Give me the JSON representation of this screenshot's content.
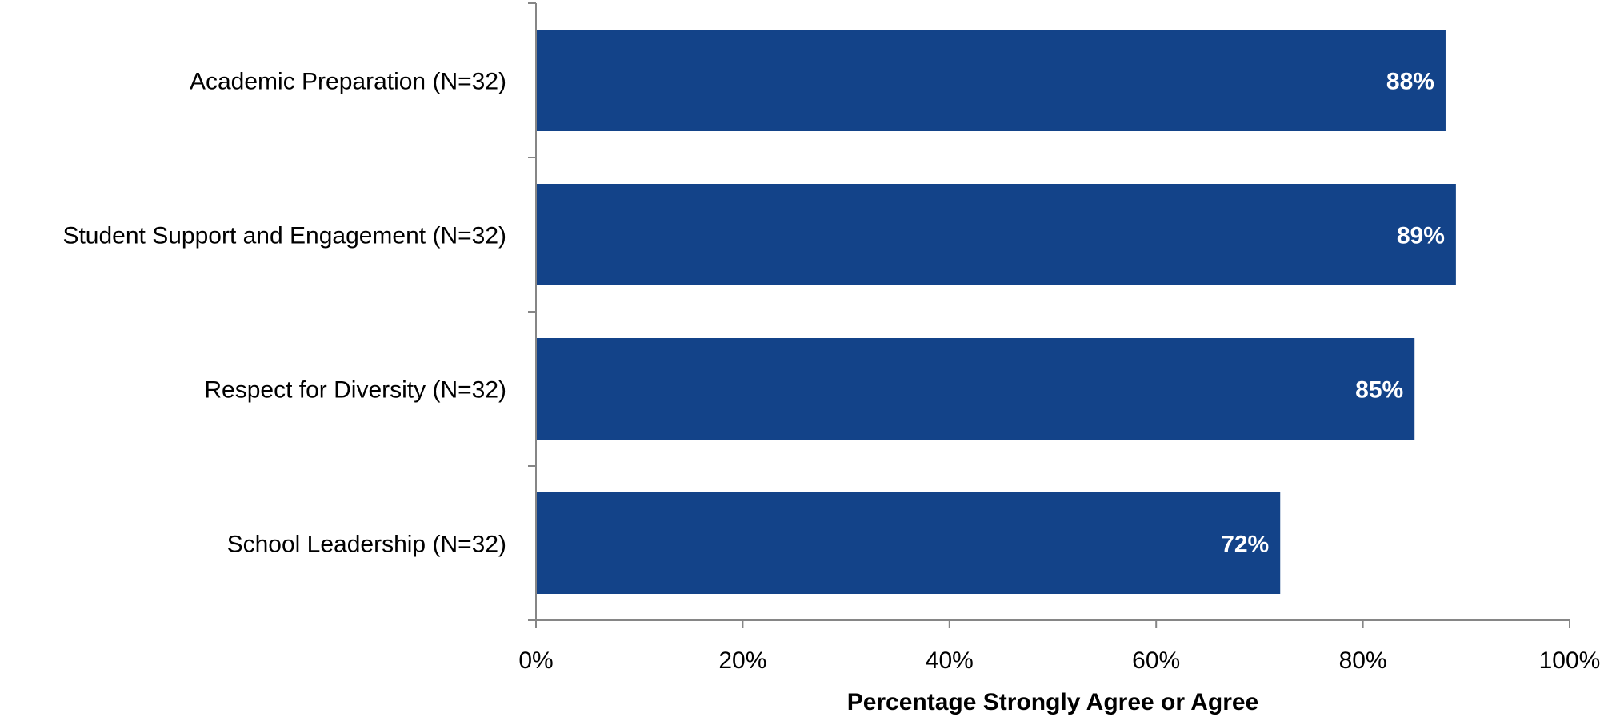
{
  "chart_data": {
    "type": "bar",
    "orientation": "horizontal",
    "categories": [
      "Academic Preparation (N=32)",
      "Student Support and Engagement (N=32)",
      "Respect for Diversity (N=32)",
      "School Leadership (N=32)"
    ],
    "values": [
      88,
      89,
      85,
      72
    ],
    "data_labels": [
      "88%",
      "89%",
      "85%",
      "72%"
    ],
    "xlabel": "Percentage Strongly Agree or Agree",
    "ylabel": "",
    "xlim": [
      0,
      100
    ],
    "x_ticks": [
      0,
      20,
      40,
      60,
      80,
      100
    ],
    "x_tick_labels": [
      "0%",
      "20%",
      "40%",
      "60%",
      "80%",
      "100%"
    ],
    "grid": false,
    "legend": "none",
    "bar_color": "#134389",
    "axis_color": "#868686"
  }
}
